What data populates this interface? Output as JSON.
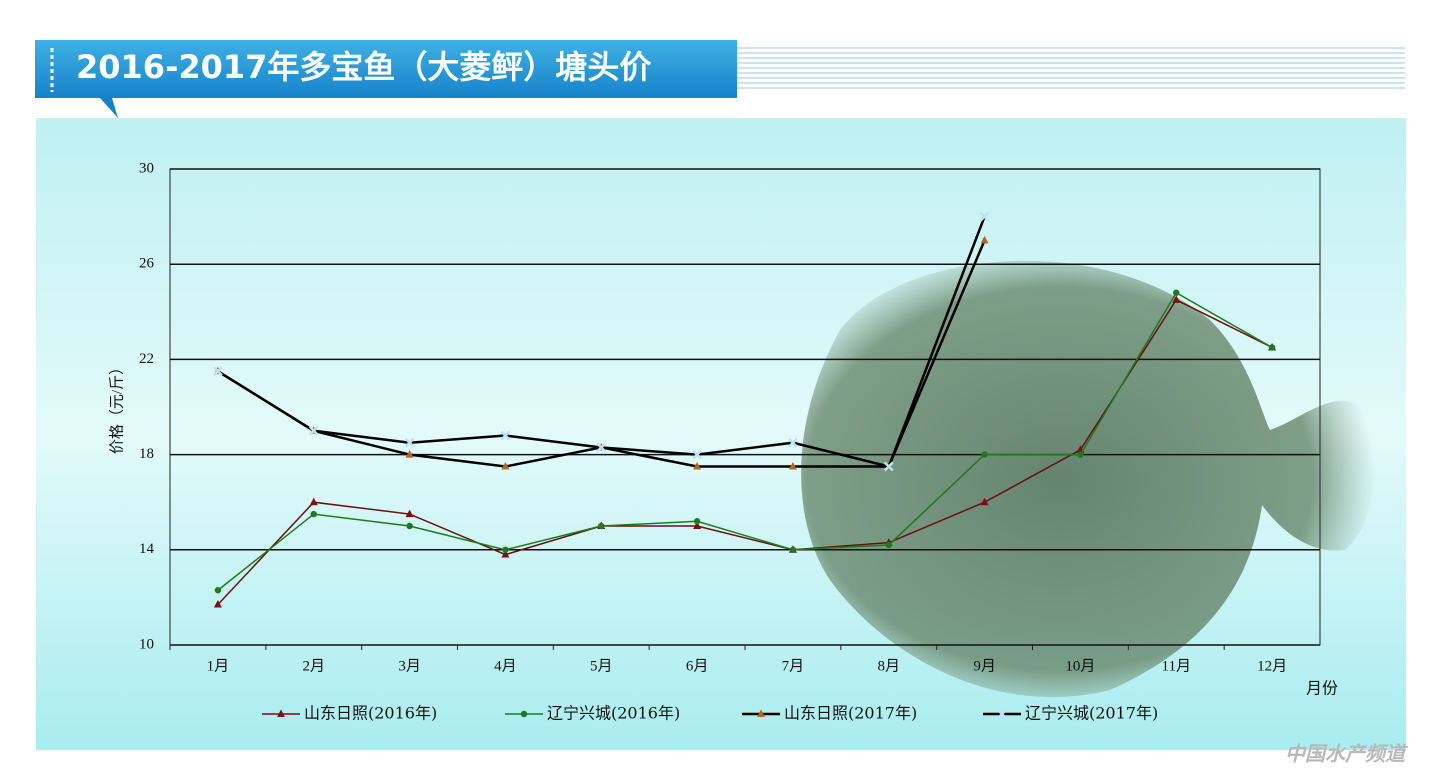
{
  "chart_data": {
    "type": "line",
    "title": "2016-2017年多宝鱼（大菱鲆）塘头价",
    "y_label": "价格（元/斤）",
    "x_label": "月份",
    "watermark": "中国水产频道",
    "categories": [
      "1月",
      "2月",
      "3月",
      "4月",
      "5月",
      "6月",
      "7月",
      "8月",
      "9月",
      "10月",
      "11月",
      "12月"
    ],
    "ylim": [
      10,
      30
    ],
    "yticks": [
      10,
      14,
      18,
      22,
      26,
      30
    ],
    "grid": true,
    "legend": "bottom",
    "series": [
      {
        "name": "山东日照(2016年)",
        "color": "#6b0f12",
        "marker": "triangle",
        "marker_color": "#7a1014",
        "values": [
          11.7,
          16.0,
          15.5,
          13.8,
          15.0,
          15.0,
          14.0,
          14.3,
          16.0,
          18.2,
          24.5,
          22.5
        ]
      },
      {
        "name": "辽宁兴城(2016年)",
        "color": "#1e7a1e",
        "marker": "circle",
        "marker_color": "#1e7a1e",
        "values": [
          12.3,
          15.5,
          15.0,
          14.0,
          15.0,
          15.2,
          14.0,
          14.2,
          18.0,
          18.0,
          24.8,
          22.5
        ]
      },
      {
        "name": "山东日照(2017年)",
        "color": "#000000",
        "marker": "triangle",
        "marker_color": "#b5651d",
        "values": [
          21.5,
          19.0,
          18.0,
          17.5,
          18.3,
          17.5,
          17.5,
          17.5,
          27.0,
          null,
          null,
          null
        ]
      },
      {
        "name": "辽宁兴城(2017年)",
        "color": "#000000",
        "marker": "x",
        "marker_color": "#bfe3f2",
        "values": [
          21.5,
          19.0,
          18.5,
          18.8,
          18.3,
          18.0,
          18.5,
          17.5,
          28.0,
          null,
          null,
          null
        ]
      }
    ]
  }
}
